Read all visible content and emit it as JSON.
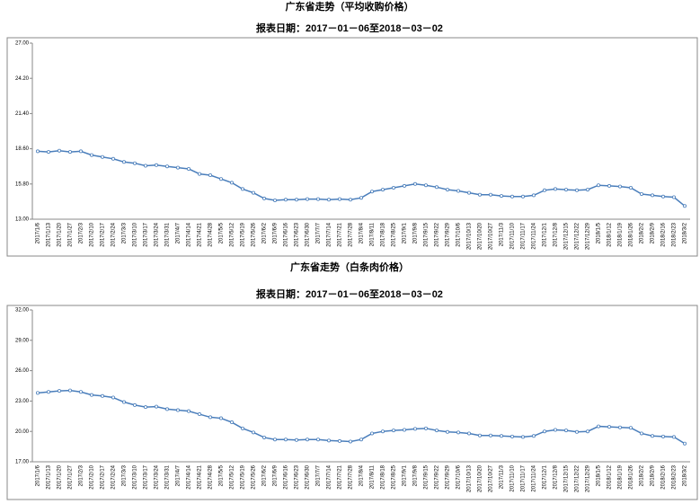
{
  "chart_data": [
    {
      "type": "line",
      "title": "广东省走势（平均收购价格）",
      "subtitle": "报表日期：2017－01－06至2018－03－02",
      "categories": [
        "2017/1/6",
        "2017/1/13",
        "2017/1/20",
        "2017/1/27",
        "2017/2/3",
        "2017/2/10",
        "2017/2/17",
        "2017/2/24",
        "2017/3/3",
        "2017/3/10",
        "2017/3/17",
        "2017/3/24",
        "2017/3/31",
        "2017/4/7",
        "2017/4/14",
        "2017/4/21",
        "2017/4/28",
        "2017/5/5",
        "2017/5/12",
        "2017/5/19",
        "2017/5/26",
        "2017/6/2",
        "2017/6/9",
        "2017/6/16",
        "2017/6/23",
        "2017/6/30",
        "2017/7/7",
        "2017/7/14",
        "2017/7/21",
        "2017/7/28",
        "2017/8/4",
        "2017/8/11",
        "2017/8/18",
        "2017/8/25",
        "2017/9/1",
        "2017/9/8",
        "2017/9/15",
        "2017/9/22",
        "2017/9/29",
        "2017/10/6",
        "2017/10/13",
        "2017/10/20",
        "2017/10/27",
        "2017/11/3",
        "2017/11/10",
        "2017/11/17",
        "2017/11/24",
        "2017/12/1",
        "2017/12/8",
        "2017/12/15",
        "2017/12/22",
        "2017/12/29",
        "2018/1/5",
        "2018/1/12",
        "2018/1/19",
        "2018/1/26",
        "2018/2/2",
        "2018/2/9",
        "2018/2/16",
        "2018/2/23",
        "2018/3/2"
      ],
      "values": [
        18.4,
        18.35,
        18.45,
        18.35,
        18.4,
        18.1,
        17.95,
        17.8,
        17.55,
        17.45,
        17.25,
        17.3,
        17.2,
        17.1,
        17.0,
        16.6,
        16.5,
        16.2,
        15.9,
        15.4,
        15.1,
        14.65,
        14.5,
        14.55,
        14.55,
        14.6,
        14.6,
        14.55,
        14.6,
        14.55,
        14.7,
        15.2,
        15.35,
        15.5,
        15.65,
        15.8,
        15.7,
        15.55,
        15.35,
        15.25,
        15.1,
        14.95,
        14.95,
        14.85,
        14.8,
        14.8,
        14.9,
        15.3,
        15.4,
        15.35,
        15.3,
        15.35,
        15.7,
        15.65,
        15.6,
        15.5,
        15.0,
        14.9,
        14.8,
        14.75,
        14.05
      ],
      "color": "#4a7ebb",
      "ylim": [
        13,
        27
      ],
      "yticks": [
        {
          "value": 13,
          "label": "13.00"
        },
        {
          "value": 15.8,
          "label": "15.80"
        },
        {
          "value": 18.6,
          "label": "18.60"
        },
        {
          "value": 21.4,
          "label": "21.40"
        },
        {
          "value": 24.2,
          "label": "24.20"
        },
        {
          "value": 27,
          "label": "27.00"
        }
      ]
    },
    {
      "type": "line",
      "title": "广东省走势（白条肉价格）",
      "subtitle": "报表日期：2017－01－06至2018－03－02",
      "categories": [
        "2017/1/6",
        "2017/1/13",
        "2017/1/20",
        "2017/1/27",
        "2017/2/3",
        "2017/2/10",
        "2017/2/17",
        "2017/2/24",
        "2017/3/3",
        "2017/3/10",
        "2017/3/17",
        "2017/3/24",
        "2017/3/31",
        "2017/4/7",
        "2017/4/14",
        "2017/4/21",
        "2017/4/28",
        "2017/5/5",
        "2017/5/12",
        "2017/5/19",
        "2017/5/26",
        "2017/6/2",
        "2017/6/9",
        "2017/6/16",
        "2017/6/23",
        "2017/6/30",
        "2017/7/7",
        "2017/7/14",
        "2017/7/21",
        "2017/7/28",
        "2017/8/4",
        "2017/8/11",
        "2017/8/18",
        "2017/8/25",
        "2017/9/1",
        "2017/9/8",
        "2017/9/15",
        "2017/9/22",
        "2017/9/29",
        "2017/10/6",
        "2017/10/13",
        "2017/10/20",
        "2017/10/27",
        "2017/11/3",
        "2017/11/10",
        "2017/11/17",
        "2017/11/24",
        "2017/12/1",
        "2017/12/8",
        "2017/12/15",
        "2017/12/22",
        "2017/12/29",
        "2018/1/5",
        "2018/1/12",
        "2018/1/19",
        "2018/1/26",
        "2018/2/2",
        "2018/2/9",
        "2018/2/16",
        "2018/2/23",
        "2018/3/2"
      ],
      "values": [
        23.8,
        23.9,
        24.0,
        24.05,
        23.9,
        23.6,
        23.5,
        23.35,
        22.9,
        22.6,
        22.4,
        22.45,
        22.2,
        22.1,
        22.0,
        21.7,
        21.4,
        21.3,
        20.9,
        20.3,
        19.9,
        19.4,
        19.2,
        19.2,
        19.15,
        19.2,
        19.2,
        19.1,
        19.05,
        19.0,
        19.2,
        19.8,
        20.0,
        20.1,
        20.15,
        20.25,
        20.3,
        20.1,
        19.95,
        19.9,
        19.8,
        19.6,
        19.6,
        19.55,
        19.5,
        19.45,
        19.55,
        20.0,
        20.15,
        20.1,
        19.95,
        20.0,
        20.5,
        20.45,
        20.4,
        20.35,
        19.8,
        19.55,
        19.5,
        19.45,
        18.8
      ],
      "color": "#4a7ebb",
      "ylim": [
        17,
        32
      ],
      "yticks": [
        {
          "value": 17,
          "label": "17.00"
        },
        {
          "value": 20,
          "label": "20.00"
        },
        {
          "value": 23,
          "label": "23.00"
        },
        {
          "value": 26,
          "label": "26.00"
        },
        {
          "value": 29,
          "label": "29.00"
        },
        {
          "value": 32,
          "label": "32.00"
        }
      ]
    }
  ]
}
